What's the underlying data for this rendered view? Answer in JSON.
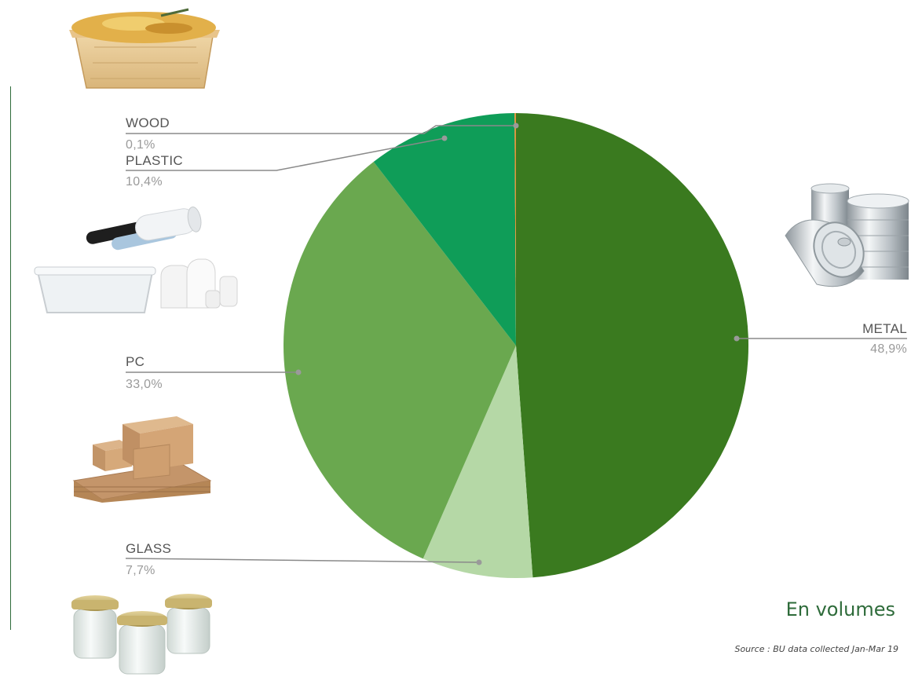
{
  "chart_data": {
    "type": "pie",
    "slices": [
      {
        "label": "METAL",
        "value_text": "48,9%",
        "value": 48.9,
        "color": "#3a7a1f"
      },
      {
        "label": "GLASS",
        "value_text": "7,7%",
        "value": 7.7,
        "color": "#b5d8a6"
      },
      {
        "label": "PC",
        "value_text": "33,0%",
        "value": 33.0,
        "color": "#6aa84f"
      },
      {
        "label": "PLASTIC",
        "value_text": "10,4%",
        "value": 10.4,
        "color": "#0f9d58"
      },
      {
        "label": "WOOD",
        "value_text": "0,1%",
        "value": 0.1,
        "color": "#e69138"
      }
    ]
  },
  "caption": "En volumes",
  "source": "Source : BU data collected Jan-Mar 19",
  "colors": {
    "accent": "#2e6b3a",
    "leader_line": "#8a8a8a"
  },
  "illustrations": [
    {
      "name": "wood-tray-illustration",
      "depicts": "gratin in wooden tray"
    },
    {
      "name": "plastic-packaging-illustration",
      "depicts": "plastic films, tub and pouches"
    },
    {
      "name": "cardboard-boxes-illustration",
      "depicts": "cardboard boxes"
    },
    {
      "name": "glass-jars-illustration",
      "depicts": "glass jars with metal lids"
    },
    {
      "name": "metal-cans-illustration",
      "depicts": "metal food cans"
    }
  ]
}
